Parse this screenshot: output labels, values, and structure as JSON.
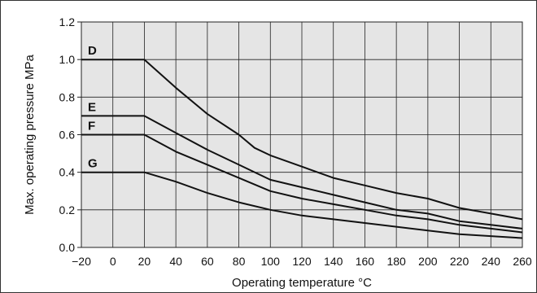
{
  "chart_data": {
    "type": "line",
    "title": "",
    "xlabel": "Operating temperature °C",
    "ylabel": "Max. operating pressure MPa",
    "xlim": [
      -20,
      260
    ],
    "ylim": [
      0,
      1.2
    ],
    "x_ticks": [
      "−20",
      "0",
      "20",
      "40",
      "60",
      "80",
      "100",
      "120",
      "140",
      "160",
      "180",
      "200",
      "220",
      "240",
      "260"
    ],
    "y_ticks": [
      "0.0",
      "0.2",
      "0.4",
      "0.6",
      "0.8",
      "1.0",
      "1.2"
    ],
    "grid": true,
    "legend": "none",
    "colors": {
      "plot_background": "#e5e5e5",
      "line": "#111111",
      "grid": "#222222"
    },
    "series": [
      {
        "name": "D",
        "x": [
          -20,
          20,
          40,
          60,
          80,
          90,
          100,
          120,
          140,
          160,
          180,
          200,
          220,
          240,
          260
        ],
        "y": [
          1.0,
          1.0,
          0.85,
          0.71,
          0.6,
          0.53,
          0.49,
          0.43,
          0.37,
          0.33,
          0.29,
          0.26,
          0.21,
          0.18,
          0.15
        ]
      },
      {
        "name": "E",
        "x": [
          -20,
          20,
          40,
          60,
          80,
          100,
          120,
          140,
          160,
          180,
          200,
          220,
          240,
          260
        ],
        "y": [
          0.7,
          0.7,
          0.61,
          0.52,
          0.44,
          0.36,
          0.32,
          0.28,
          0.24,
          0.2,
          0.18,
          0.14,
          0.12,
          0.1
        ]
      },
      {
        "name": "F",
        "x": [
          -20,
          20,
          40,
          60,
          80,
          100,
          120,
          140,
          160,
          180,
          200,
          220,
          240,
          260
        ],
        "y": [
          0.6,
          0.6,
          0.51,
          0.44,
          0.37,
          0.3,
          0.26,
          0.23,
          0.2,
          0.17,
          0.15,
          0.12,
          0.1,
          0.08
        ]
      },
      {
        "name": "G",
        "x": [
          -20,
          20,
          40,
          60,
          80,
          100,
          120,
          140,
          160,
          180,
          200,
          220,
          240,
          260
        ],
        "y": [
          0.4,
          0.4,
          0.35,
          0.29,
          0.24,
          0.2,
          0.17,
          0.15,
          0.13,
          0.11,
          0.09,
          0.07,
          0.06,
          0.05
        ]
      }
    ]
  }
}
